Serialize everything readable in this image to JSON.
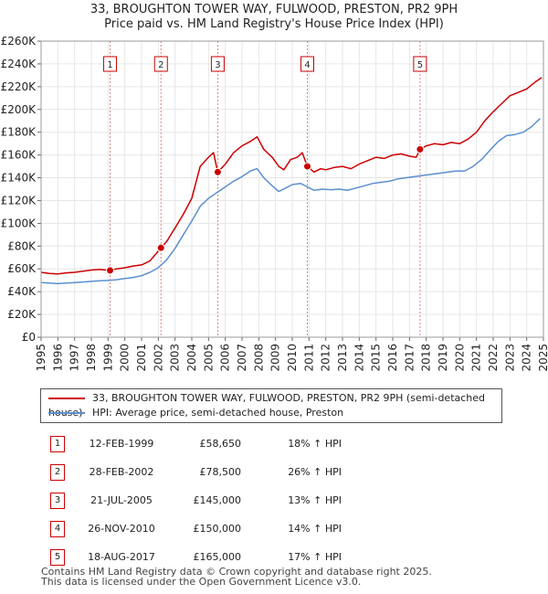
{
  "header": {
    "title": "33, BROUGHTON TOWER WAY, FULWOOD, PRESTON, PR2 9PH",
    "subtitle": "Price paid vs. HM Land Registry's House Price Index (HPI)"
  },
  "chart_data": {
    "type": "line",
    "x_range": [
      1995,
      2025
    ],
    "ylim": [
      0,
      260000
    ],
    "y_ticks": [
      0,
      20000,
      40000,
      60000,
      80000,
      100000,
      120000,
      140000,
      160000,
      180000,
      200000,
      220000,
      240000,
      260000
    ],
    "y_tick_labels": [
      "£0",
      "£20K",
      "£40K",
      "£60K",
      "£80K",
      "£100K",
      "£120K",
      "£140K",
      "£160K",
      "£180K",
      "£200K",
      "£220K",
      "£240K",
      "£260K"
    ],
    "x_ticks": [
      1995,
      1996,
      1997,
      1998,
      1999,
      2000,
      2001,
      2002,
      2003,
      2004,
      2005,
      2006,
      2007,
      2008,
      2009,
      2010,
      2011,
      2012,
      2013,
      2014,
      2015,
      2016,
      2017,
      2018,
      2019,
      2020,
      2021,
      2022,
      2023,
      2024,
      2025
    ],
    "x_tick_labels": [
      "1995",
      "1996",
      "1997",
      "1998",
      "1999",
      "2000",
      "2001",
      "2002",
      "2003",
      "2004",
      "2005",
      "2006",
      "2007",
      "2008",
      "2009",
      "2010",
      "2011",
      "2012",
      "2013",
      "2014",
      "2015",
      "2016",
      "2017",
      "2018",
      "2019",
      "2020",
      "2021",
      "2022",
      "2023",
      "2024",
      "2025"
    ],
    "grid": true,
    "series": [
      {
        "name": "33, BROUGHTON TOWER WAY, FULWOOD, PRESTON, PR2 9PH (semi-detached house)",
        "color": "#cc0000",
        "points": [
          [
            1995.0,
            57000
          ],
          [
            1995.5,
            56000
          ],
          [
            1996.0,
            55500
          ],
          [
            1996.5,
            56500
          ],
          [
            1997.0,
            57000
          ],
          [
            1997.5,
            58000
          ],
          [
            1998.0,
            59000
          ],
          [
            1998.5,
            59500
          ],
          [
            1999.12,
            58650
          ],
          [
            1999.5,
            60000
          ],
          [
            2000.0,
            61000
          ],
          [
            2000.5,
            62500
          ],
          [
            2001.0,
            63500
          ],
          [
            2001.5,
            67000
          ],
          [
            2002.16,
            78500
          ],
          [
            2002.5,
            84000
          ],
          [
            2003.0,
            96000
          ],
          [
            2003.5,
            108000
          ],
          [
            2004.0,
            122000
          ],
          [
            2004.5,
            150000
          ],
          [
            2005.0,
            158000
          ],
          [
            2005.3,
            162000
          ],
          [
            2005.55,
            145000
          ],
          [
            2006.0,
            152000
          ],
          [
            2006.5,
            162000
          ],
          [
            2007.0,
            168000
          ],
          [
            2007.5,
            172000
          ],
          [
            2007.9,
            176000
          ],
          [
            2008.3,
            165000
          ],
          [
            2008.8,
            158000
          ],
          [
            2009.2,
            150000
          ],
          [
            2009.5,
            147000
          ],
          [
            2009.9,
            156000
          ],
          [
            2010.3,
            158000
          ],
          [
            2010.6,
            162000
          ],
          [
            2010.9,
            150000
          ],
          [
            2011.3,
            145000
          ],
          [
            2011.7,
            148000
          ],
          [
            2012.0,
            147000
          ],
          [
            2012.5,
            149000
          ],
          [
            2013.0,
            150000
          ],
          [
            2013.5,
            148000
          ],
          [
            2014.0,
            152000
          ],
          [
            2014.5,
            155000
          ],
          [
            2015.0,
            158000
          ],
          [
            2015.5,
            157000
          ],
          [
            2016.0,
            160000
          ],
          [
            2016.5,
            161000
          ],
          [
            2017.0,
            159000
          ],
          [
            2017.4,
            158000
          ],
          [
            2017.63,
            165000
          ],
          [
            2018.0,
            168000
          ],
          [
            2018.5,
            170000
          ],
          [
            2019.0,
            169000
          ],
          [
            2019.5,
            171000
          ],
          [
            2020.0,
            170000
          ],
          [
            2020.5,
            174000
          ],
          [
            2021.0,
            180000
          ],
          [
            2021.5,
            190000
          ],
          [
            2022.0,
            198000
          ],
          [
            2022.5,
            205000
          ],
          [
            2023.0,
            212000
          ],
          [
            2023.5,
            215000
          ],
          [
            2024.0,
            218000
          ],
          [
            2024.5,
            224000
          ],
          [
            2024.9,
            228000
          ]
        ]
      },
      {
        "name": "HPI: Average price, semi-detached house, Preston",
        "color": "#5b8fd0",
        "points": [
          [
            1995.0,
            48000
          ],
          [
            1995.5,
            47500
          ],
          [
            1996.0,
            47000
          ],
          [
            1996.5,
            47500
          ],
          [
            1997.0,
            48000
          ],
          [
            1997.5,
            48500
          ],
          [
            1998.0,
            49000
          ],
          [
            1998.5,
            49500
          ],
          [
            1999.0,
            49800
          ],
          [
            1999.5,
            50500
          ],
          [
            2000.0,
            51500
          ],
          [
            2000.5,
            52500
          ],
          [
            2001.0,
            54000
          ],
          [
            2001.5,
            57000
          ],
          [
            2002.0,
            61000
          ],
          [
            2002.5,
            68000
          ],
          [
            2003.0,
            78000
          ],
          [
            2003.5,
            90000
          ],
          [
            2004.0,
            102000
          ],
          [
            2004.5,
            115000
          ],
          [
            2005.0,
            122000
          ],
          [
            2005.5,
            127000
          ],
          [
            2006.0,
            132000
          ],
          [
            2006.5,
            137000
          ],
          [
            2007.0,
            141000
          ],
          [
            2007.5,
            146000
          ],
          [
            2007.9,
            148000
          ],
          [
            2008.3,
            140000
          ],
          [
            2008.8,
            133000
          ],
          [
            2009.2,
            128000
          ],
          [
            2009.6,
            131000
          ],
          [
            2010.0,
            134000
          ],
          [
            2010.5,
            135000
          ],
          [
            2010.9,
            132000
          ],
          [
            2011.3,
            129000
          ],
          [
            2011.8,
            130000
          ],
          [
            2012.3,
            129500
          ],
          [
            2012.8,
            130000
          ],
          [
            2013.3,
            129000
          ],
          [
            2013.8,
            131000
          ],
          [
            2014.3,
            133000
          ],
          [
            2014.8,
            135000
          ],
          [
            2015.3,
            136000
          ],
          [
            2015.8,
            137000
          ],
          [
            2016.3,
            139000
          ],
          [
            2016.8,
            140000
          ],
          [
            2017.3,
            141000
          ],
          [
            2017.8,
            142000
          ],
          [
            2018.3,
            143000
          ],
          [
            2018.8,
            144000
          ],
          [
            2019.3,
            145000
          ],
          [
            2019.8,
            146000
          ],
          [
            2020.3,
            146000
          ],
          [
            2020.8,
            150000
          ],
          [
            2021.3,
            156000
          ],
          [
            2021.8,
            164000
          ],
          [
            2022.3,
            172000
          ],
          [
            2022.8,
            177000
          ],
          [
            2023.3,
            178000
          ],
          [
            2023.8,
            180000
          ],
          [
            2024.3,
            185000
          ],
          [
            2024.8,
            192000
          ]
        ]
      }
    ],
    "sales": [
      {
        "label": "1",
        "x": 1999.12,
        "price": 58650
      },
      {
        "label": "2",
        "x": 2002.16,
        "price": 78500
      },
      {
        "label": "3",
        "x": 2005.55,
        "price": 145000
      },
      {
        "label": "4",
        "x": 2010.9,
        "price": 150000
      },
      {
        "label": "5",
        "x": 2017.63,
        "price": 165000
      }
    ]
  },
  "legend": {
    "property_label": "33, BROUGHTON TOWER WAY, FULWOOD, PRESTON, PR2 9PH (semi-detached house)",
    "property_color": "#cc0000",
    "hpi_label": "HPI: Average price, semi-detached house, Preston",
    "hpi_color": "#5b8fd0"
  },
  "transactions": [
    {
      "num": "1",
      "date": "12-FEB-1999",
      "price": "£58,650",
      "hpi": "18% ↑ HPI"
    },
    {
      "num": "2",
      "date": "28-FEB-2002",
      "price": "£78,500",
      "hpi": "26% ↑ HPI"
    },
    {
      "num": "3",
      "date": "21-JUL-2005",
      "price": "£145,000",
      "hpi": "13% ↑ HPI"
    },
    {
      "num": "4",
      "date": "26-NOV-2010",
      "price": "£150,000",
      "hpi": "14% ↑ HPI"
    },
    {
      "num": "5",
      "date": "18-AUG-2017",
      "price": "£165,000",
      "hpi": "17% ↑ HPI"
    }
  ],
  "footer": {
    "line1": "Contains HM Land Registry data © Crown copyright and database right 2025.",
    "line2": "This data is licensed under the Open Government Licence v3.0."
  }
}
